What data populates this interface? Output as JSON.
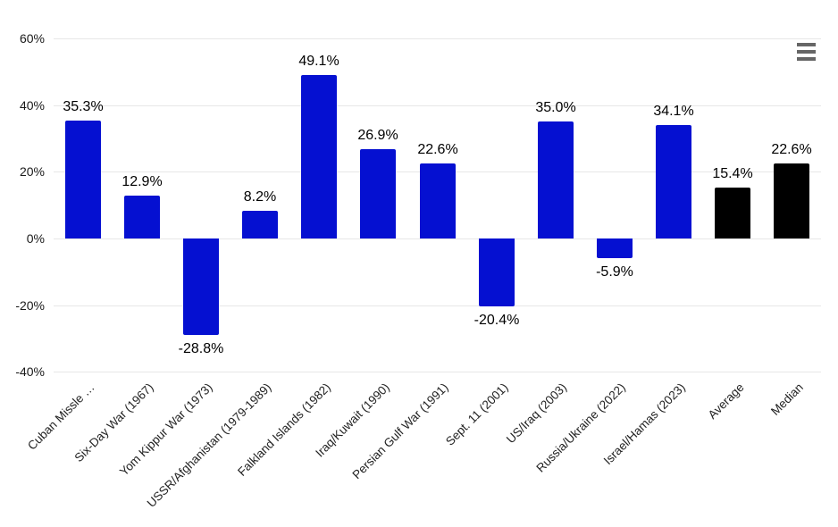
{
  "chart_data": {
    "type": "bar",
    "title": "",
    "xlabel": "",
    "ylabel": "",
    "categories": [
      "Cuban Missle …",
      "Six-Day War (1967)",
      "Yom Kippur War (1973)",
      "USSR/Afghanistan (1979-1989)",
      "Falkland Islands (1982)",
      "Iraq/Kuwait (1990)",
      "Persian Gulf War (1991)",
      "Sept. 11 (2001)",
      "US/Iraq (2003)",
      "Russia/Ukraine (2022)",
      "Israel/Hamas (2023)",
      "Average",
      "Median"
    ],
    "values": [
      35.3,
      12.9,
      -28.8,
      8.2,
      49.1,
      26.9,
      22.6,
      -20.4,
      35.0,
      -5.9,
      34.1,
      15.4,
      22.6
    ],
    "data_labels": [
      "35.3%",
      "12.9%",
      "-28.8%",
      "8.2%",
      "49.1%",
      "26.9%",
      "22.6%",
      "-20.4%",
      "35.0%",
      "-5.9%",
      "34.1%",
      "15.4%",
      "22.6%"
    ],
    "bar_colors": [
      "#0510d1",
      "#0510d1",
      "#0510d1",
      "#0510d1",
      "#0510d1",
      "#0510d1",
      "#0510d1",
      "#0510d1",
      "#0510d1",
      "#0510d1",
      "#0510d1",
      "#000000",
      "#000000"
    ],
    "y_ticks": [
      {
        "value": 60,
        "label": "60%"
      },
      {
        "value": 40,
        "label": "40%"
      },
      {
        "value": 20,
        "label": "20%"
      },
      {
        "value": 0,
        "label": "0%"
      },
      {
        "value": -20,
        "label": "-20%"
      },
      {
        "value": -40,
        "label": "-40%"
      }
    ],
    "ylim": [
      -40,
      60
    ],
    "grid": true,
    "legend_position": "none",
    "colors": {
      "war_bar": "#0510d1",
      "summary_bar": "#000000",
      "gridline": "#e7e7e7",
      "value_label_text": "#000000",
      "axis_tick_text": "#222222",
      "menu_icon": "#666666",
      "background": "#ffffff"
    }
  },
  "icons": {
    "context_menu": "hamburger-menu-icon"
  }
}
